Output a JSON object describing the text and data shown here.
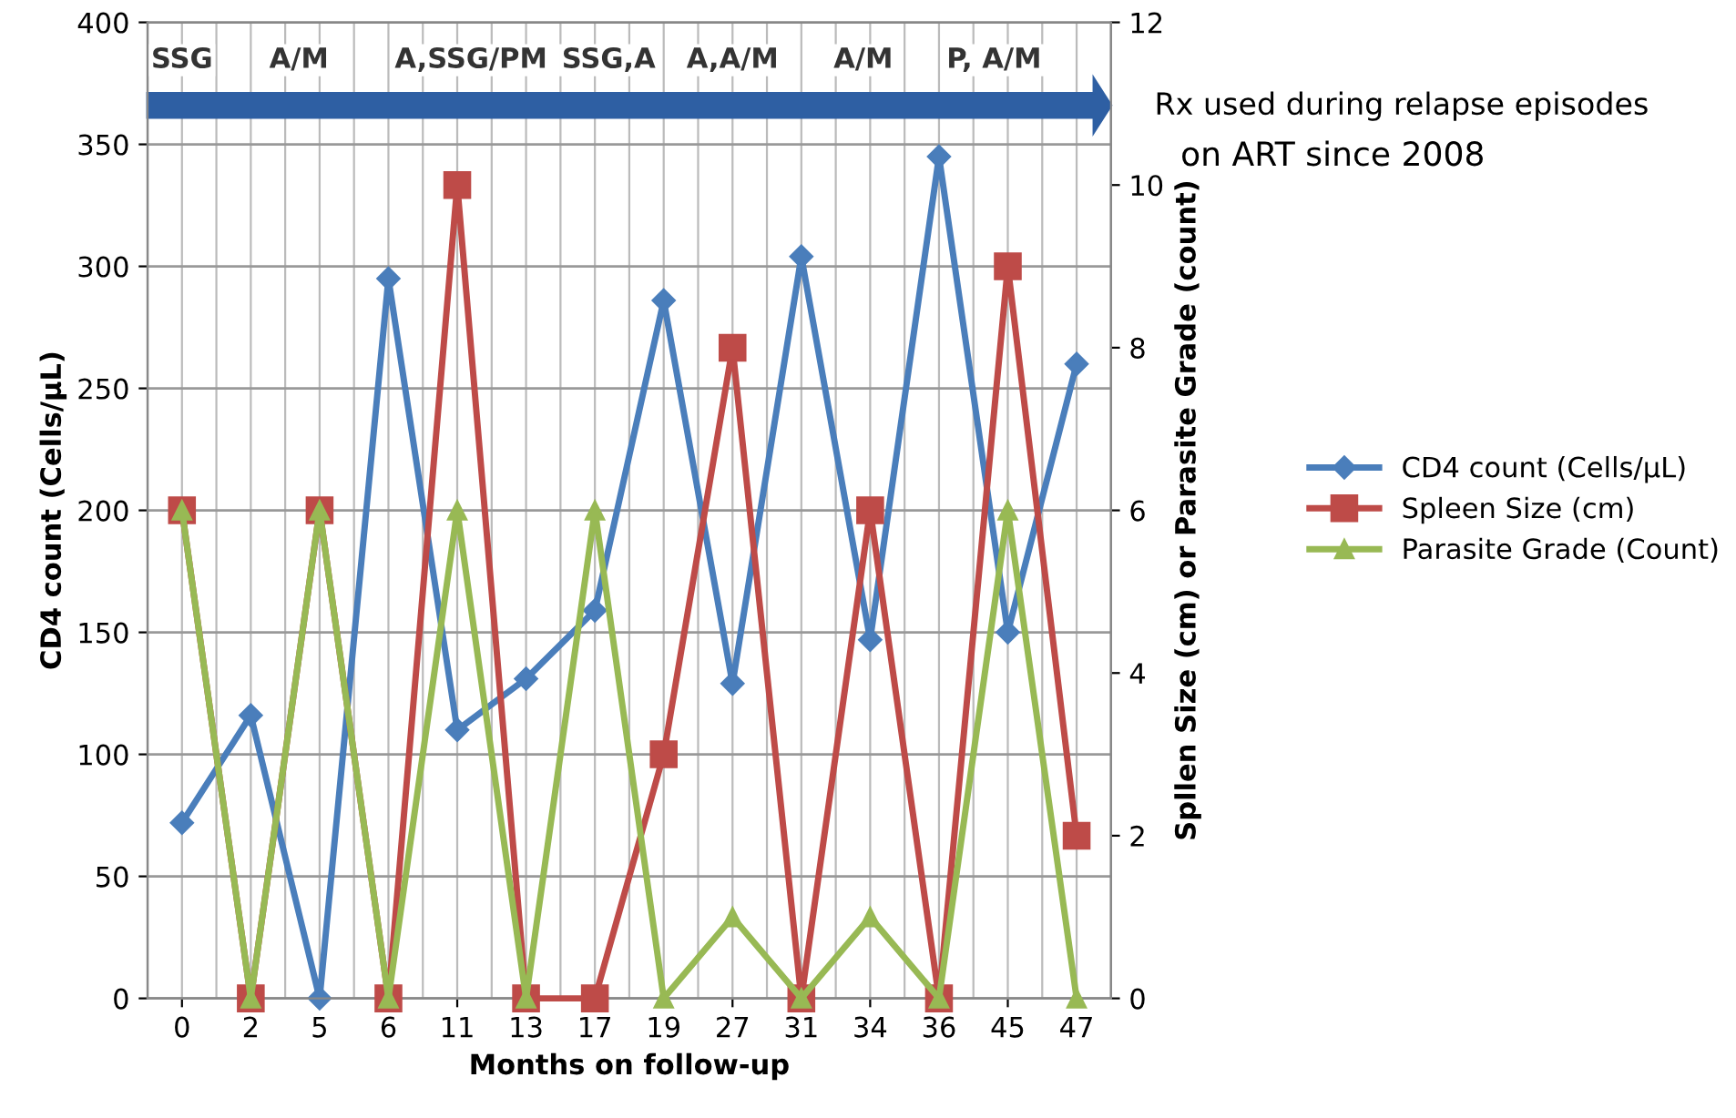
{
  "chart_data": {
    "type": "line",
    "xlabel": "Months on follow-up",
    "ylabel": "CD4 count (Cells/µL)",
    "y2label": "Spllen Size (cm) or Parasite Grade (count)",
    "categories": [
      "0",
      "2",
      "5",
      "6",
      "11",
      "13",
      "17",
      "19",
      "27",
      "31",
      "34",
      "36",
      "45",
      "47"
    ],
    "series": [
      {
        "name": "CD4 count (Cells/µL)",
        "color": "#4a7ebb",
        "marker": "diamond",
        "values": [
          72,
          116,
          0,
          295,
          110,
          131,
          159,
          286,
          129,
          304,
          147,
          345,
          150,
          260
        ]
      },
      {
        "name": "Spleen Size (cm)",
        "color": "#be4b48",
        "marker": "square",
        "axis": "y2",
        "values": [
          6,
          0,
          6,
          0,
          10,
          0,
          0,
          3,
          8,
          0,
          6,
          0,
          9,
          2
        ]
      },
      {
        "name": "Parasite Grade (Count)",
        "color": "#98b954",
        "marker": "triangle",
        "axis": "y2",
        "values": [
          6,
          0,
          6,
          0,
          6,
          0,
          6,
          0,
          1,
          0,
          1,
          0,
          6,
          0
        ]
      }
    ],
    "ylim": [
      0,
      400
    ],
    "yticks": [
      0,
      50,
      100,
      150,
      200,
      250,
      300,
      350,
      400
    ],
    "y2lim": [
      0,
      12
    ],
    "y2ticks": [
      0,
      2,
      4,
      6,
      8,
      10,
      12
    ],
    "grid": true,
    "legend": "right",
    "annotations": [
      "SSG",
      "A/M",
      "A,SSG/PM",
      "SSG,A",
      "A,A/M",
      "A/M",
      "P, A/M",
      "Rx used during relapse episodes",
      "on ART since 2008"
    ]
  }
}
